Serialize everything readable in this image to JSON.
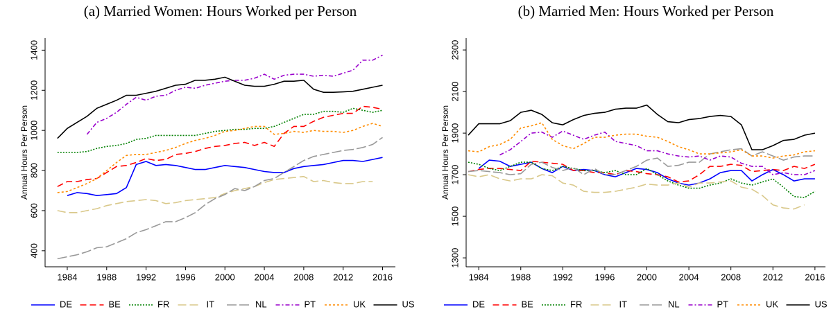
{
  "chart_data": [
    {
      "type": "line",
      "title": "(a) Married Women: Hours Worked per Person",
      "y_label": "Annual Hours Per Person",
      "x": [
        1983,
        1984,
        1985,
        1986,
        1987,
        1988,
        1989,
        1990,
        1991,
        1992,
        1993,
        1994,
        1995,
        1996,
        1997,
        1998,
        1999,
        2000,
        2001,
        2002,
        2003,
        2004,
        2005,
        2006,
        2007,
        2008,
        2009,
        2010,
        2011,
        2012,
        2013,
        2014,
        2015,
        2016
      ],
      "xlim": [
        1981.75,
        2017.3
      ],
      "xticks": [
        1984,
        1988,
        1992,
        1996,
        2000,
        2004,
        2008,
        2012,
        2016
      ],
      "ylim": [
        320,
        1460
      ],
      "yticks": [
        400,
        600,
        800,
        1000,
        1200,
        1400
      ],
      "grid": false,
      "legend": "bottom",
      "series": [
        {
          "name": "DE",
          "color": "#0000ff",
          "dash": "none",
          "values": [
            null,
            675,
            690,
            685,
            675,
            680,
            685,
            715,
            830,
            845,
            825,
            830,
            825,
            815,
            805,
            805,
            815,
            825,
            820,
            815,
            805,
            795,
            790,
            790,
            810,
            820,
            825,
            830,
            840,
            850,
            850,
            845,
            855,
            865
          ]
        },
        {
          "name": "BE",
          "color": "#ff0000",
          "dash": "9,5",
          "values": [
            720,
            745,
            745,
            755,
            760,
            790,
            820,
            825,
            840,
            860,
            850,
            855,
            880,
            885,
            895,
            910,
            920,
            925,
            935,
            940,
            925,
            940,
            920,
            985,
            1020,
            1020,
            1045,
            1065,
            1075,
            1085,
            1085,
            1120,
            1115,
            1105
          ]
        },
        {
          "name": "FR",
          "color": "#008000",
          "dash": "2,2",
          "values": [
            890,
            890,
            890,
            895,
            910,
            920,
            925,
            935,
            955,
            960,
            975,
            975,
            975,
            975,
            975,
            985,
            995,
            1000,
            1005,
            1005,
            1010,
            1010,
            1020,
            1040,
            1060,
            1080,
            1080,
            1095,
            1095,
            1090,
            1110,
            1100,
            1090,
            1100
          ]
        },
        {
          "name": "IT",
          "color": "#d9c88a",
          "dash": "12,5",
          "values": [
            600,
            590,
            590,
            600,
            610,
            625,
            635,
            645,
            650,
            655,
            650,
            635,
            640,
            650,
            655,
            660,
            665,
            685,
            700,
            710,
            720,
            740,
            755,
            760,
            765,
            770,
            745,
            750,
            740,
            735,
            735,
            745,
            745,
            null
          ]
        },
        {
          "name": "NL",
          "color": "#999999",
          "dash": "14,4",
          "values": [
            360,
            370,
            380,
            395,
            415,
            420,
            440,
            460,
            490,
            505,
            525,
            545,
            545,
            565,
            590,
            630,
            660,
            680,
            710,
            700,
            720,
            750,
            760,
            790,
            820,
            850,
            870,
            880,
            890,
            900,
            905,
            915,
            930,
            965
          ]
        },
        {
          "name": "PT",
          "color": "#9900cc",
          "dash": "6,3,2,3",
          "values": [
            null,
            null,
            null,
            980,
            1040,
            1060,
            1090,
            1130,
            1165,
            1150,
            1170,
            1175,
            1200,
            1215,
            1210,
            1225,
            1235,
            1245,
            1250,
            1250,
            1260,
            1280,
            1255,
            1275,
            1280,
            1280,
            1270,
            1275,
            1270,
            1285,
            1300,
            1350,
            1350,
            1375
          ]
        },
        {
          "name": "UK",
          "color": "#ff8c00",
          "dash": "3,3",
          "values": [
            690,
            695,
            715,
            735,
            760,
            800,
            840,
            875,
            880,
            880,
            890,
            900,
            915,
            935,
            950,
            960,
            975,
            995,
            1000,
            1010,
            1020,
            1020,
            980,
            985,
            995,
            990,
            1000,
            995,
            995,
            990,
            1000,
            1020,
            1035,
            1020
          ]
        },
        {
          "name": "US",
          "color": "#000000",
          "dash": "none",
          "values": [
            960,
            1010,
            1040,
            1070,
            1110,
            1130,
            1150,
            1175,
            1175,
            1185,
            1195,
            1210,
            1225,
            1230,
            1250,
            1250,
            1255,
            1265,
            1245,
            1225,
            1220,
            1220,
            1230,
            1245,
            1245,
            1250,
            1205,
            1190,
            1190,
            1192,
            1195,
            1205,
            1215,
            1225
          ]
        }
      ]
    },
    {
      "type": "line",
      "title": "(b) Married Men: Hours Worked per Person",
      "y_label": "Annual Hours Per Person",
      "x": [
        1983,
        1984,
        1985,
        1986,
        1987,
        1988,
        1989,
        1990,
        1991,
        1992,
        1993,
        1994,
        1995,
        1996,
        1997,
        1998,
        1999,
        2000,
        2001,
        2002,
        2003,
        2004,
        2005,
        2006,
        2007,
        2008,
        2009,
        2010,
        2011,
        2012,
        2013,
        2014,
        2015,
        2016
      ],
      "xlim": [
        1982.8,
        2017
      ],
      "xticks": [
        1984,
        1988,
        1992,
        1996,
        2000,
        2004,
        2008,
        2012,
        2016
      ],
      "ylim": [
        1257,
        2357
      ],
      "yticks": [
        1300,
        1500,
        1700,
        1900,
        2100,
        2300
      ],
      "grid": false,
      "legend": "bottom",
      "series": [
        {
          "name": "DE",
          "color": "#0000ff",
          "dash": "none",
          "values": [
            null,
            1730,
            1770,
            1765,
            1740,
            1750,
            1760,
            1730,
            1710,
            1740,
            1720,
            1725,
            1720,
            1700,
            1690,
            1710,
            1730,
            1725,
            1710,
            1680,
            1660,
            1650,
            1660,
            1680,
            1710,
            1720,
            1720,
            1670,
            1700,
            1725,
            1700,
            1670,
            1680,
            1680
          ]
        },
        {
          "name": "BE",
          "color": "#ff0000",
          "dash": "9,5",
          "values": [
            1715,
            1725,
            1730,
            1730,
            1725,
            1720,
            1765,
            1760,
            1755,
            1750,
            1720,
            1720,
            1710,
            1710,
            1700,
            1720,
            1715,
            1705,
            1700,
            1690,
            1665,
            1670,
            1700,
            1740,
            1740,
            1750,
            1745,
            1715,
            1720,
            1725,
            1720,
            1740,
            1730,
            1750
          ]
        },
        {
          "name": "FR",
          "color": "#008000",
          "dash": "2,2",
          "values": [
            1760,
            1750,
            1730,
            1720,
            1740,
            1760,
            1760,
            1730,
            1720,
            1740,
            1730,
            1720,
            1720,
            1710,
            1720,
            1700,
            1700,
            1730,
            1700,
            1670,
            1650,
            1635,
            1635,
            1650,
            1660,
            1680,
            1660,
            1650,
            1665,
            1680,
            1640,
            1595,
            1590,
            1620
          ]
        },
        {
          "name": "IT",
          "color": "#d9c88a",
          "dash": "12,5",
          "values": [
            1700,
            1690,
            1700,
            1680,
            1670,
            1680,
            1680,
            1700,
            1695,
            1660,
            1650,
            1620,
            1615,
            1615,
            1620,
            1630,
            1640,
            1655,
            1650,
            1650,
            1660,
            1640,
            1660,
            1660,
            1665,
            1670,
            1640,
            1630,
            1600,
            1555,
            1540,
            1535,
            1555,
            null
          ]
        },
        {
          "name": "NL",
          "color": "#999999",
          "dash": "14,4",
          "values": [
            1715,
            1720,
            1715,
            1710,
            1700,
            1705,
            1750,
            1760,
            1735,
            1720,
            1735,
            1700,
            1730,
            1700,
            1700,
            1720,
            1740,
            1770,
            1780,
            1740,
            1745,
            1760,
            1760,
            1800,
            1810,
            1820,
            1825,
            1790,
            1810,
            1790,
            1770,
            1785,
            1790,
            1790
          ]
        },
        {
          "name": "PT",
          "color": "#9900cc",
          "dash": "6,3,2,3",
          "values": [
            null,
            null,
            null,
            1795,
            1820,
            1860,
            1900,
            1905,
            1880,
            1910,
            1890,
            1870,
            1890,
            1905,
            1860,
            1850,
            1840,
            1815,
            1815,
            1800,
            1790,
            1785,
            1790,
            1770,
            1790,
            1785,
            1755,
            1740,
            1740,
            1700,
            1710,
            1700,
            1700,
            1720
          ]
        },
        {
          "name": "UK",
          "color": "#ff8c00",
          "dash": "3,3",
          "values": [
            1815,
            1810,
            1835,
            1845,
            1870,
            1925,
            1935,
            1950,
            1870,
            1840,
            1825,
            1850,
            1880,
            1880,
            1890,
            1895,
            1895,
            1885,
            1880,
            1860,
            1835,
            1820,
            1800,
            1800,
            1805,
            1810,
            1820,
            1790,
            1790,
            1780,
            1790,
            1795,
            1810,
            1815
          ]
        },
        {
          "name": "US",
          "color": "#000000",
          "dash": "none",
          "values": [
            1890,
            1945,
            1945,
            1945,
            1960,
            2000,
            2010,
            1990,
            1950,
            1940,
            1965,
            1985,
            1995,
            2000,
            2015,
            2020,
            2020,
            2035,
            1990,
            1955,
            1950,
            1965,
            1970,
            1980,
            1985,
            1980,
            1940,
            1820,
            1820,
            1840,
            1865,
            1870,
            1890,
            1900
          ]
        }
      ]
    }
  ]
}
